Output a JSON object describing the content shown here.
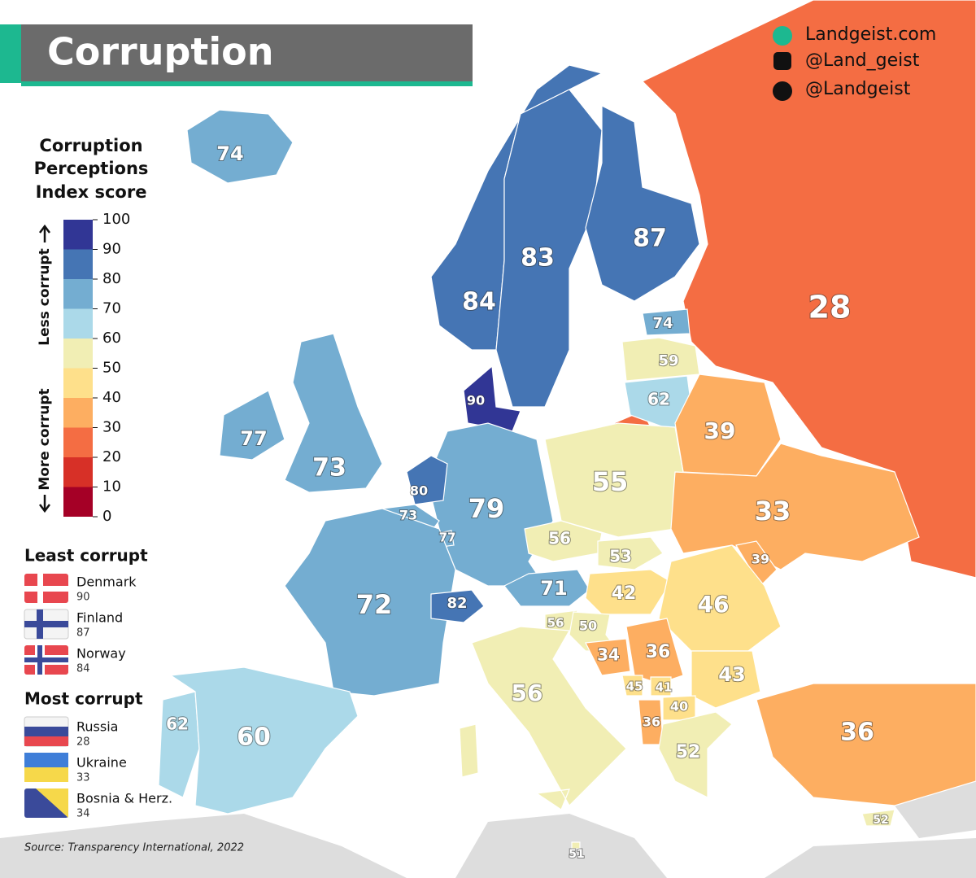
{
  "header": {
    "title": "Corruption",
    "links": [
      "Landgeist.com",
      "@Land_geist",
      "@Landgeist"
    ]
  },
  "legend": {
    "title": [
      "Corruption",
      "Perceptions",
      "Index score"
    ],
    "less": "Less corrupt",
    "more": "More corrupt",
    "ticks": [
      0,
      10,
      20,
      30,
      40,
      50,
      60,
      70,
      80,
      90,
      100
    ],
    "colors": [
      "#a50026",
      "#d73027",
      "#f46d43",
      "#fdae61",
      "#fee08b",
      "#f1eeb4",
      "#abd9e9",
      "#74add1",
      "#4575b4",
      "#313695"
    ]
  },
  "least": {
    "title": "Least corrupt",
    "items": [
      {
        "name": "Denmark",
        "score": 90
      },
      {
        "name": "Finland",
        "score": 87
      },
      {
        "name": "Norway",
        "score": 84
      }
    ]
  },
  "most": {
    "title": "Most corrupt",
    "items": [
      {
        "name": "Russia",
        "score": 28
      },
      {
        "name": "Ukraine",
        "score": 33
      },
      {
        "name": "Bosnia & Herz.",
        "score": 34
      }
    ]
  },
  "source": "Source: Transparency International, 2022",
  "map": {
    "scores": [
      74,
      84,
      83,
      87,
      28,
      74,
      59,
      62,
      90,
      77,
      73,
      39,
      55,
      79,
      80,
      73,
      77,
      33,
      56,
      53,
      39,
      71,
      42,
      46,
      72,
      82,
      56,
      50,
      34,
      36,
      43,
      45,
      41,
      40,
      36,
      56,
      52,
      36,
      62,
      60,
      52,
      51
    ]
  }
}
